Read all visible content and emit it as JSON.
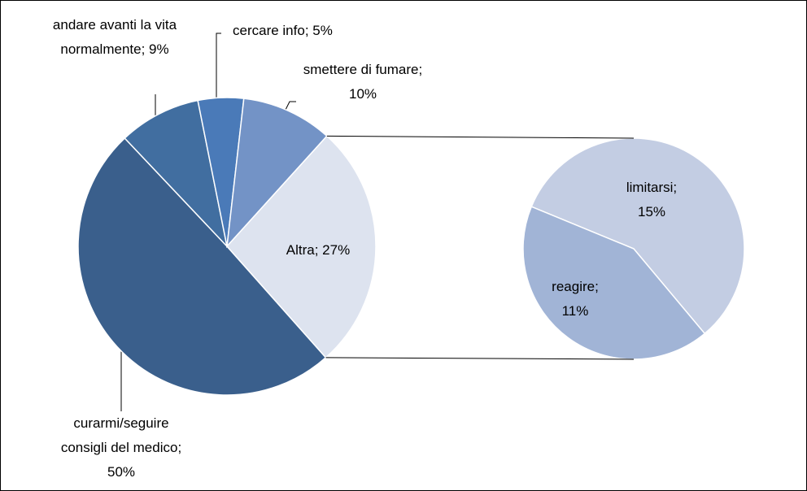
{
  "chart_data": {
    "type": "pie-of-pie",
    "values": [
      50,
      9,
      5,
      10,
      27
    ],
    "value_labels": [
      "curarmi/seguire consigli del medico; 50%",
      "andare avanti la vita normalmente; 9%",
      "cercare info; 5%",
      "smettere di fumare; 10%",
      "Altra; 27%"
    ],
    "colors": [
      "#3a5f8c",
      "#416ea0",
      "#4a7ab8",
      "#7393c6",
      "#dde3ef"
    ],
    "secondary": {
      "values": [
        15,
        11
      ],
      "value_labels": [
        "limitarsi; 15%",
        "reagire; 11%"
      ],
      "colors": [
        "#c3cde3",
        "#a1b4d6"
      ]
    }
  }
}
